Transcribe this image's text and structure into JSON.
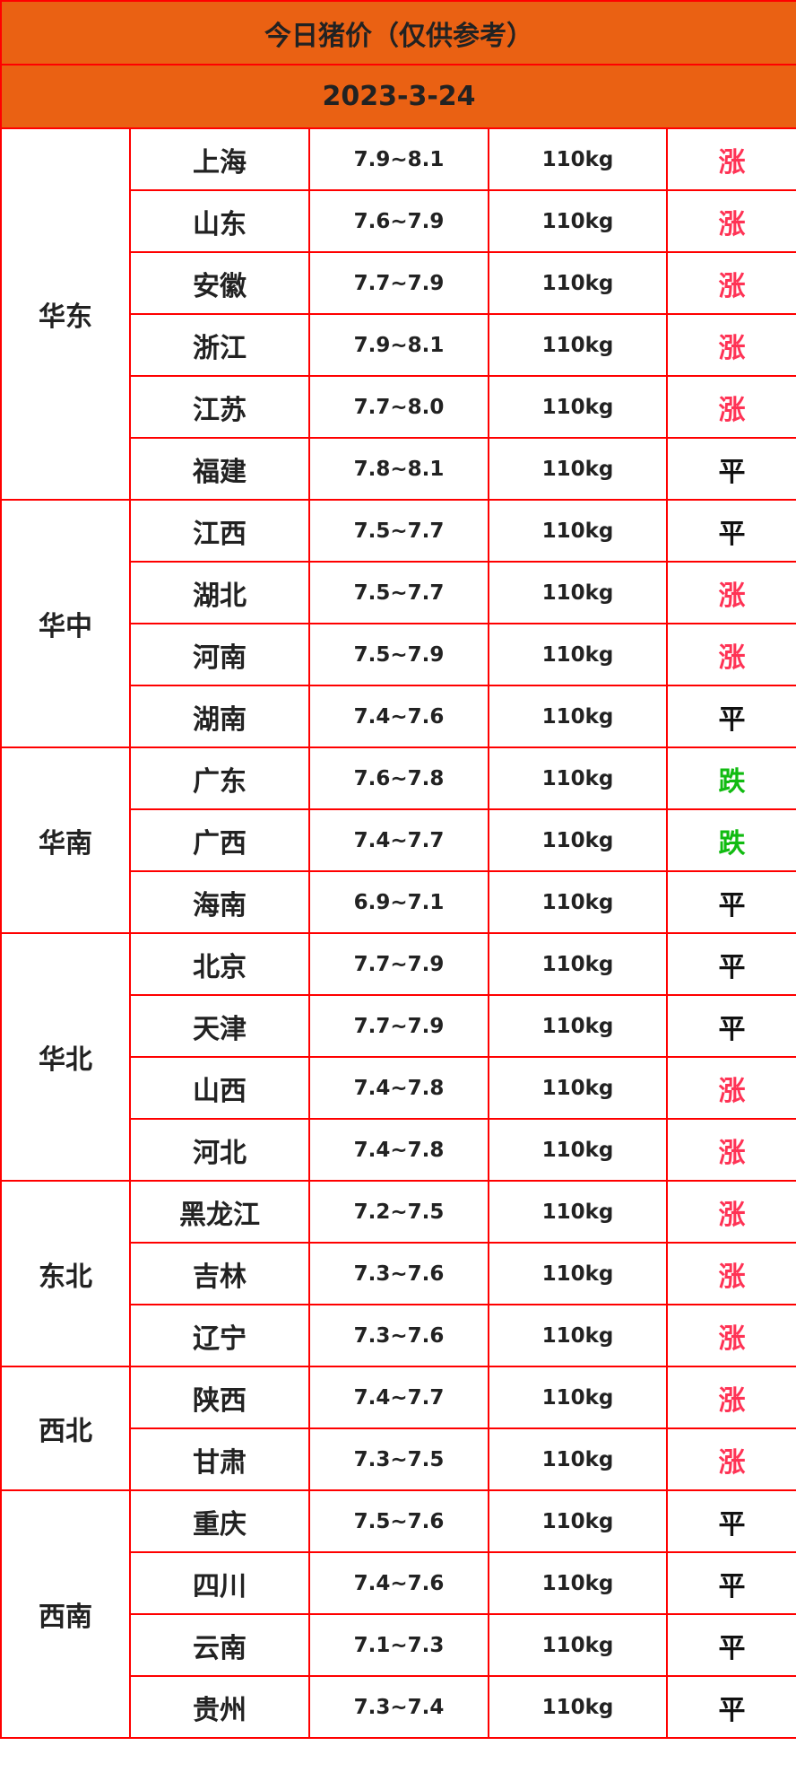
{
  "title": "今日猪价（仅供参考）",
  "date": "2023-3-24",
  "colors": {
    "header_bg": "#ea6113",
    "border": "#ff0000",
    "rise": "#ff3355",
    "fall": "#11bb11",
    "flat": "#111111"
  },
  "regions": [
    {
      "name": "华东",
      "rows": [
        {
          "province": "上海",
          "price": "7.9~8.1",
          "weight": "110kg",
          "trend": "涨"
        },
        {
          "province": "山东",
          "price": "7.6~7.9",
          "weight": "110kg",
          "trend": "涨"
        },
        {
          "province": "安徽",
          "price": "7.7~7.9",
          "weight": "110kg",
          "trend": "涨"
        },
        {
          "province": "浙江",
          "price": "7.9~8.1",
          "weight": "110kg",
          "trend": "涨"
        },
        {
          "province": "江苏",
          "price": "7.7~8.0",
          "weight": "110kg",
          "trend": "涨"
        },
        {
          "province": "福建",
          "price": "7.8~8.1",
          "weight": "110kg",
          "trend": "平"
        }
      ]
    },
    {
      "name": "华中",
      "rows": [
        {
          "province": "江西",
          "price": "7.5~7.7",
          "weight": "110kg",
          "trend": "平"
        },
        {
          "province": "湖北",
          "price": "7.5~7.7",
          "weight": "110kg",
          "trend": "涨"
        },
        {
          "province": "河南",
          "price": "7.5~7.9",
          "weight": "110kg",
          "trend": "涨"
        },
        {
          "province": "湖南",
          "price": "7.4~7.6",
          "weight": "110kg",
          "trend": "平"
        }
      ]
    },
    {
      "name": "华南",
      "rows": [
        {
          "province": "广东",
          "price": "7.6~7.8",
          "weight": "110kg",
          "trend": "跌"
        },
        {
          "province": "广西",
          "price": "7.4~7.7",
          "weight": "110kg",
          "trend": "跌"
        },
        {
          "province": "海南",
          "price": "6.9~7.1",
          "weight": "110kg",
          "trend": "平"
        }
      ]
    },
    {
      "name": "华北",
      "rows": [
        {
          "province": "北京",
          "price": "7.7~7.9",
          "weight": "110kg",
          "trend": "平"
        },
        {
          "province": "天津",
          "price": "7.7~7.9",
          "weight": "110kg",
          "trend": "平"
        },
        {
          "province": "山西",
          "price": "7.4~7.8",
          "weight": "110kg",
          "trend": "涨"
        },
        {
          "province": "河北",
          "price": "7.4~7.8",
          "weight": "110kg",
          "trend": "涨"
        }
      ]
    },
    {
      "name": "东北",
      "rows": [
        {
          "province": "黑龙江",
          "price": "7.2~7.5",
          "weight": "110kg",
          "trend": "涨"
        },
        {
          "province": "吉林",
          "price": "7.3~7.6",
          "weight": "110kg",
          "trend": "涨"
        },
        {
          "province": "辽宁",
          "price": "7.3~7.6",
          "weight": "110kg",
          "trend": "涨"
        }
      ]
    },
    {
      "name": "西北",
      "rows": [
        {
          "province": "陕西",
          "price": "7.4~7.7",
          "weight": "110kg",
          "trend": "涨"
        },
        {
          "province": "甘肃",
          "price": "7.3~7.5",
          "weight": "110kg",
          "trend": "涨"
        }
      ]
    },
    {
      "name": "西南",
      "rows": [
        {
          "province": "重庆",
          "price": "7.5~7.6",
          "weight": "110kg",
          "trend": "平"
        },
        {
          "province": "四川",
          "price": "7.4~7.6",
          "weight": "110kg",
          "trend": "平"
        },
        {
          "province": "云南",
          "price": "7.1~7.3",
          "weight": "110kg",
          "trend": "平"
        },
        {
          "province": "贵州",
          "price": "7.3~7.4",
          "weight": "110kg",
          "trend": "平"
        }
      ]
    }
  ]
}
